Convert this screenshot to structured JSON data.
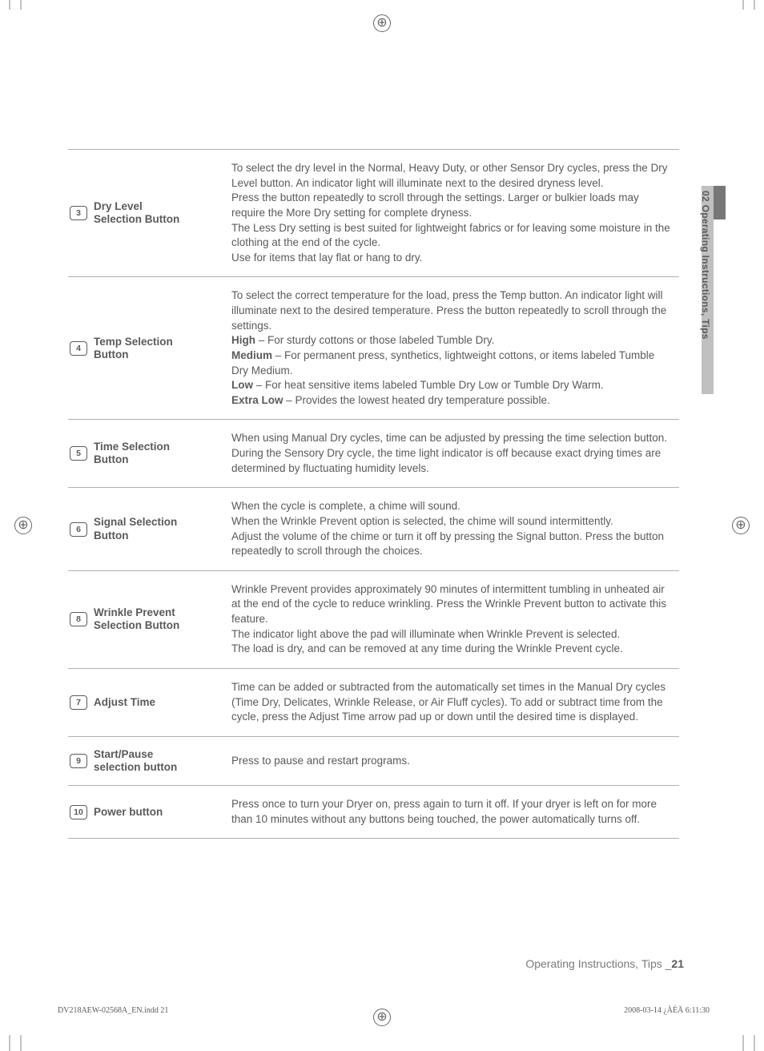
{
  "rows": [
    {
      "num": "3",
      "label": "Dry Level\nSelection Button",
      "desc": "To select the dry level in the Normal, Heavy Duty, or other Sensor Dry cycles, press the Dry Level button. An indicator light will illuminate next to the desired dryness level.\nPress the button repeatedly to scroll through the settings. Larger or bulkier loads may require the More Dry setting for complete dryness.\nThe Less Dry setting is best suited for lightweight fabrics or for leaving some moisture in the clothing at the end of the cycle.\nUse for items that lay flat or hang to dry."
    },
    {
      "num": "4",
      "label": "Temp Selection\nButton",
      "desc": "To select the correct temperature for the load, press the Temp button. An indicator light will illuminate next to the desired temperature. Press the button repeatedly to scroll through the settings.\n<b>High</b> – For sturdy cottons or those labeled Tumble Dry.\n<b>Medium</b> – For permanent press, synthetics, lightweight cottons, or items labeled Tumble Dry Medium.\n<b>Low</b> – For heat sensitive items labeled Tumble Dry Low or Tumble Dry Warm.\n<b>Extra Low</b> – Provides the lowest heated dry temperature possible."
    },
    {
      "num": "5",
      "label": "Time Selection\nButton",
      "desc": "When using Manual Dry cycles, time can be adjusted by pressing the time selection button.\nDuring the Sensory Dry cycle, the time light indicator is off because exact drying times are determined by fluctuating humidity levels."
    },
    {
      "num": "6",
      "label": "Signal Selection\nButton",
      "desc": "When the cycle is complete, a chime will sound.\nWhen the Wrinkle Prevent option is selected, the chime will sound intermittently.\nAdjust the volume of the chime or turn it off by pressing the Signal button. Press the button repeatedly to scroll through the choices."
    },
    {
      "num": "8",
      "label": "Wrinkle Prevent\nSelection Button",
      "desc": "Wrinkle Prevent provides approximately 90 minutes of intermittent tumbling in unheated air at the end of the cycle to reduce wrinkling. Press the Wrinkle Prevent button to activate this feature.\nThe indicator light above the pad will illuminate when Wrinkle Prevent is selected.\nThe load is dry, and can be removed at any time during the Wrinkle Prevent cycle."
    },
    {
      "num": "7",
      "label": "Adjust Time",
      "desc": "Time can be added or subtracted from the automatically set times in the Manual Dry cycles (Time Dry, Delicates, Wrinkle Release, or Air Fluff cycles). To add or subtract time from the cycle, press the Adjust Time arrow pad up or down until the desired time is displayed."
    },
    {
      "num": "9",
      "label": "Start/Pause\nselection button",
      "desc": "Press to pause and restart programs."
    },
    {
      "num": "10",
      "label": "Power button",
      "desc": "Press once to turn your Dryer on, press again to turn it off. If your dryer is left on for more than 10 minutes without any buttons being touched, the power automatically turns off."
    }
  ],
  "side_tab": "02 Operating Instructions, Tips",
  "footer_section": "Operating Instructions, Tips _",
  "footer_page": "21",
  "footer_file": "DV218AEW-02568A_EN.indd   21",
  "footer_time": "2008-03-14   ¿ÀÈÄ 6:11:30"
}
